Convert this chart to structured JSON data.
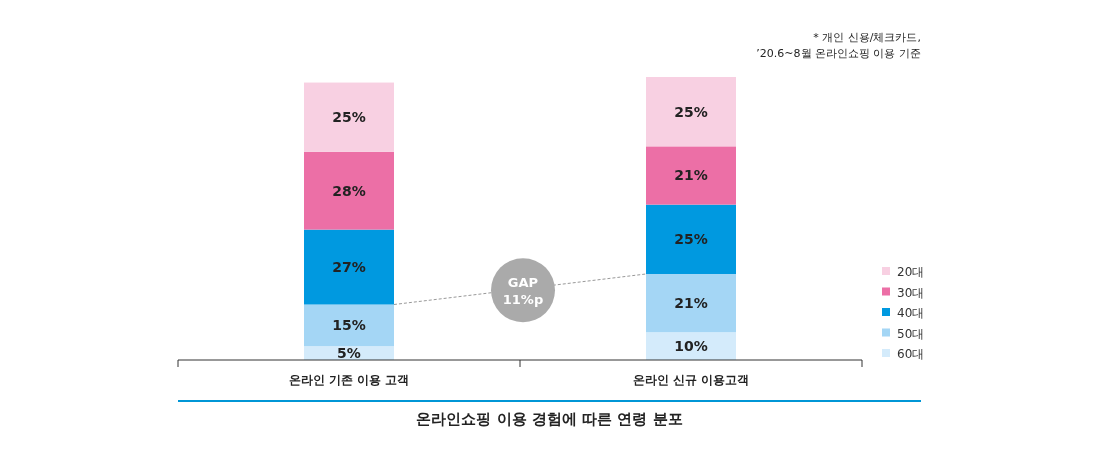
{
  "chart_data": {
    "type": "bar",
    "stacked": true,
    "title": "온라인쇼핑 이용 경험에 따른 연령 분포",
    "categories": [
      "온라인 기존 이용 고객",
      "온라인 신규 이용고객"
    ],
    "series": [
      {
        "name": "60대",
        "color": "#d4ebfb",
        "values": [
          5,
          10
        ],
        "value_labels": [
          "5%",
          "10%"
        ]
      },
      {
        "name": "50대",
        "color": "#a4d6f5",
        "values": [
          15,
          21
        ],
        "value_labels": [
          "15%",
          "21%"
        ]
      },
      {
        "name": "40대",
        "color": "#0099e0",
        "values": [
          27,
          25
        ],
        "value_labels": [
          "27%",
          "25%"
        ]
      },
      {
        "name": "30대",
        "color": "#ec6fa6",
        "values": [
          28,
          21
        ],
        "value_labels": [
          "28%",
          "21%"
        ]
      },
      {
        "name": "20대",
        "color": "#f8d0e2",
        "values": [
          25,
          25
        ],
        "value_labels": [
          "25%",
          "25%"
        ]
      }
    ],
    "legend": "right",
    "annotations": [
      "* 개인 신용/체크카드,\n’20.6~8월 온라인쇼핑 이용 기준",
      "GAP\n11%p"
    ]
  }
}
